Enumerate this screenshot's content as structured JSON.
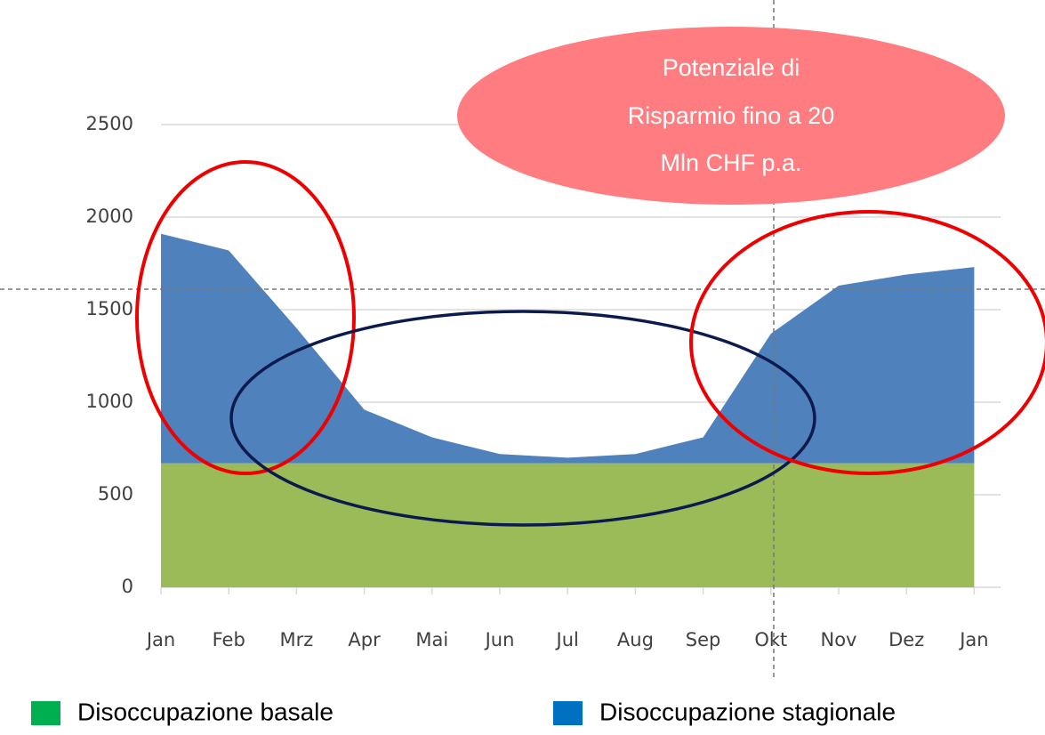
{
  "chart_data": {
    "type": "stacked_area",
    "categories": [
      "Jan",
      "Feb",
      "Mrz",
      "Apr",
      "Mai",
      "Jun",
      "Jul",
      "Aug",
      "Sep",
      "Okt",
      "Nov",
      "Dez",
      "Jan"
    ],
    "series": [
      {
        "name": "Disoccupazione basale",
        "color": "#9bbb59",
        "legend_color": "#00b050",
        "values": [
          670,
          670,
          670,
          670,
          670,
          670,
          670,
          670,
          670,
          670,
          670,
          670,
          670
        ]
      },
      {
        "name": "Disoccupazione stagionale",
        "color": "#4f81bd",
        "legend_color": "#0070c0",
        "values": [
          1240,
          1150,
          730,
          290,
          140,
          50,
          30,
          50,
          140,
          700,
          960,
          1020,
          1060
        ]
      }
    ],
    "ylim": [
      0,
      2500
    ],
    "yticks": [
      0,
      500,
      1000,
      1500,
      2000,
      2500
    ],
    "grid": true,
    "annotation": [
      "Potenziale di",
      "Risparmio fino a 20",
      "Mln CHF p.a."
    ]
  }
}
